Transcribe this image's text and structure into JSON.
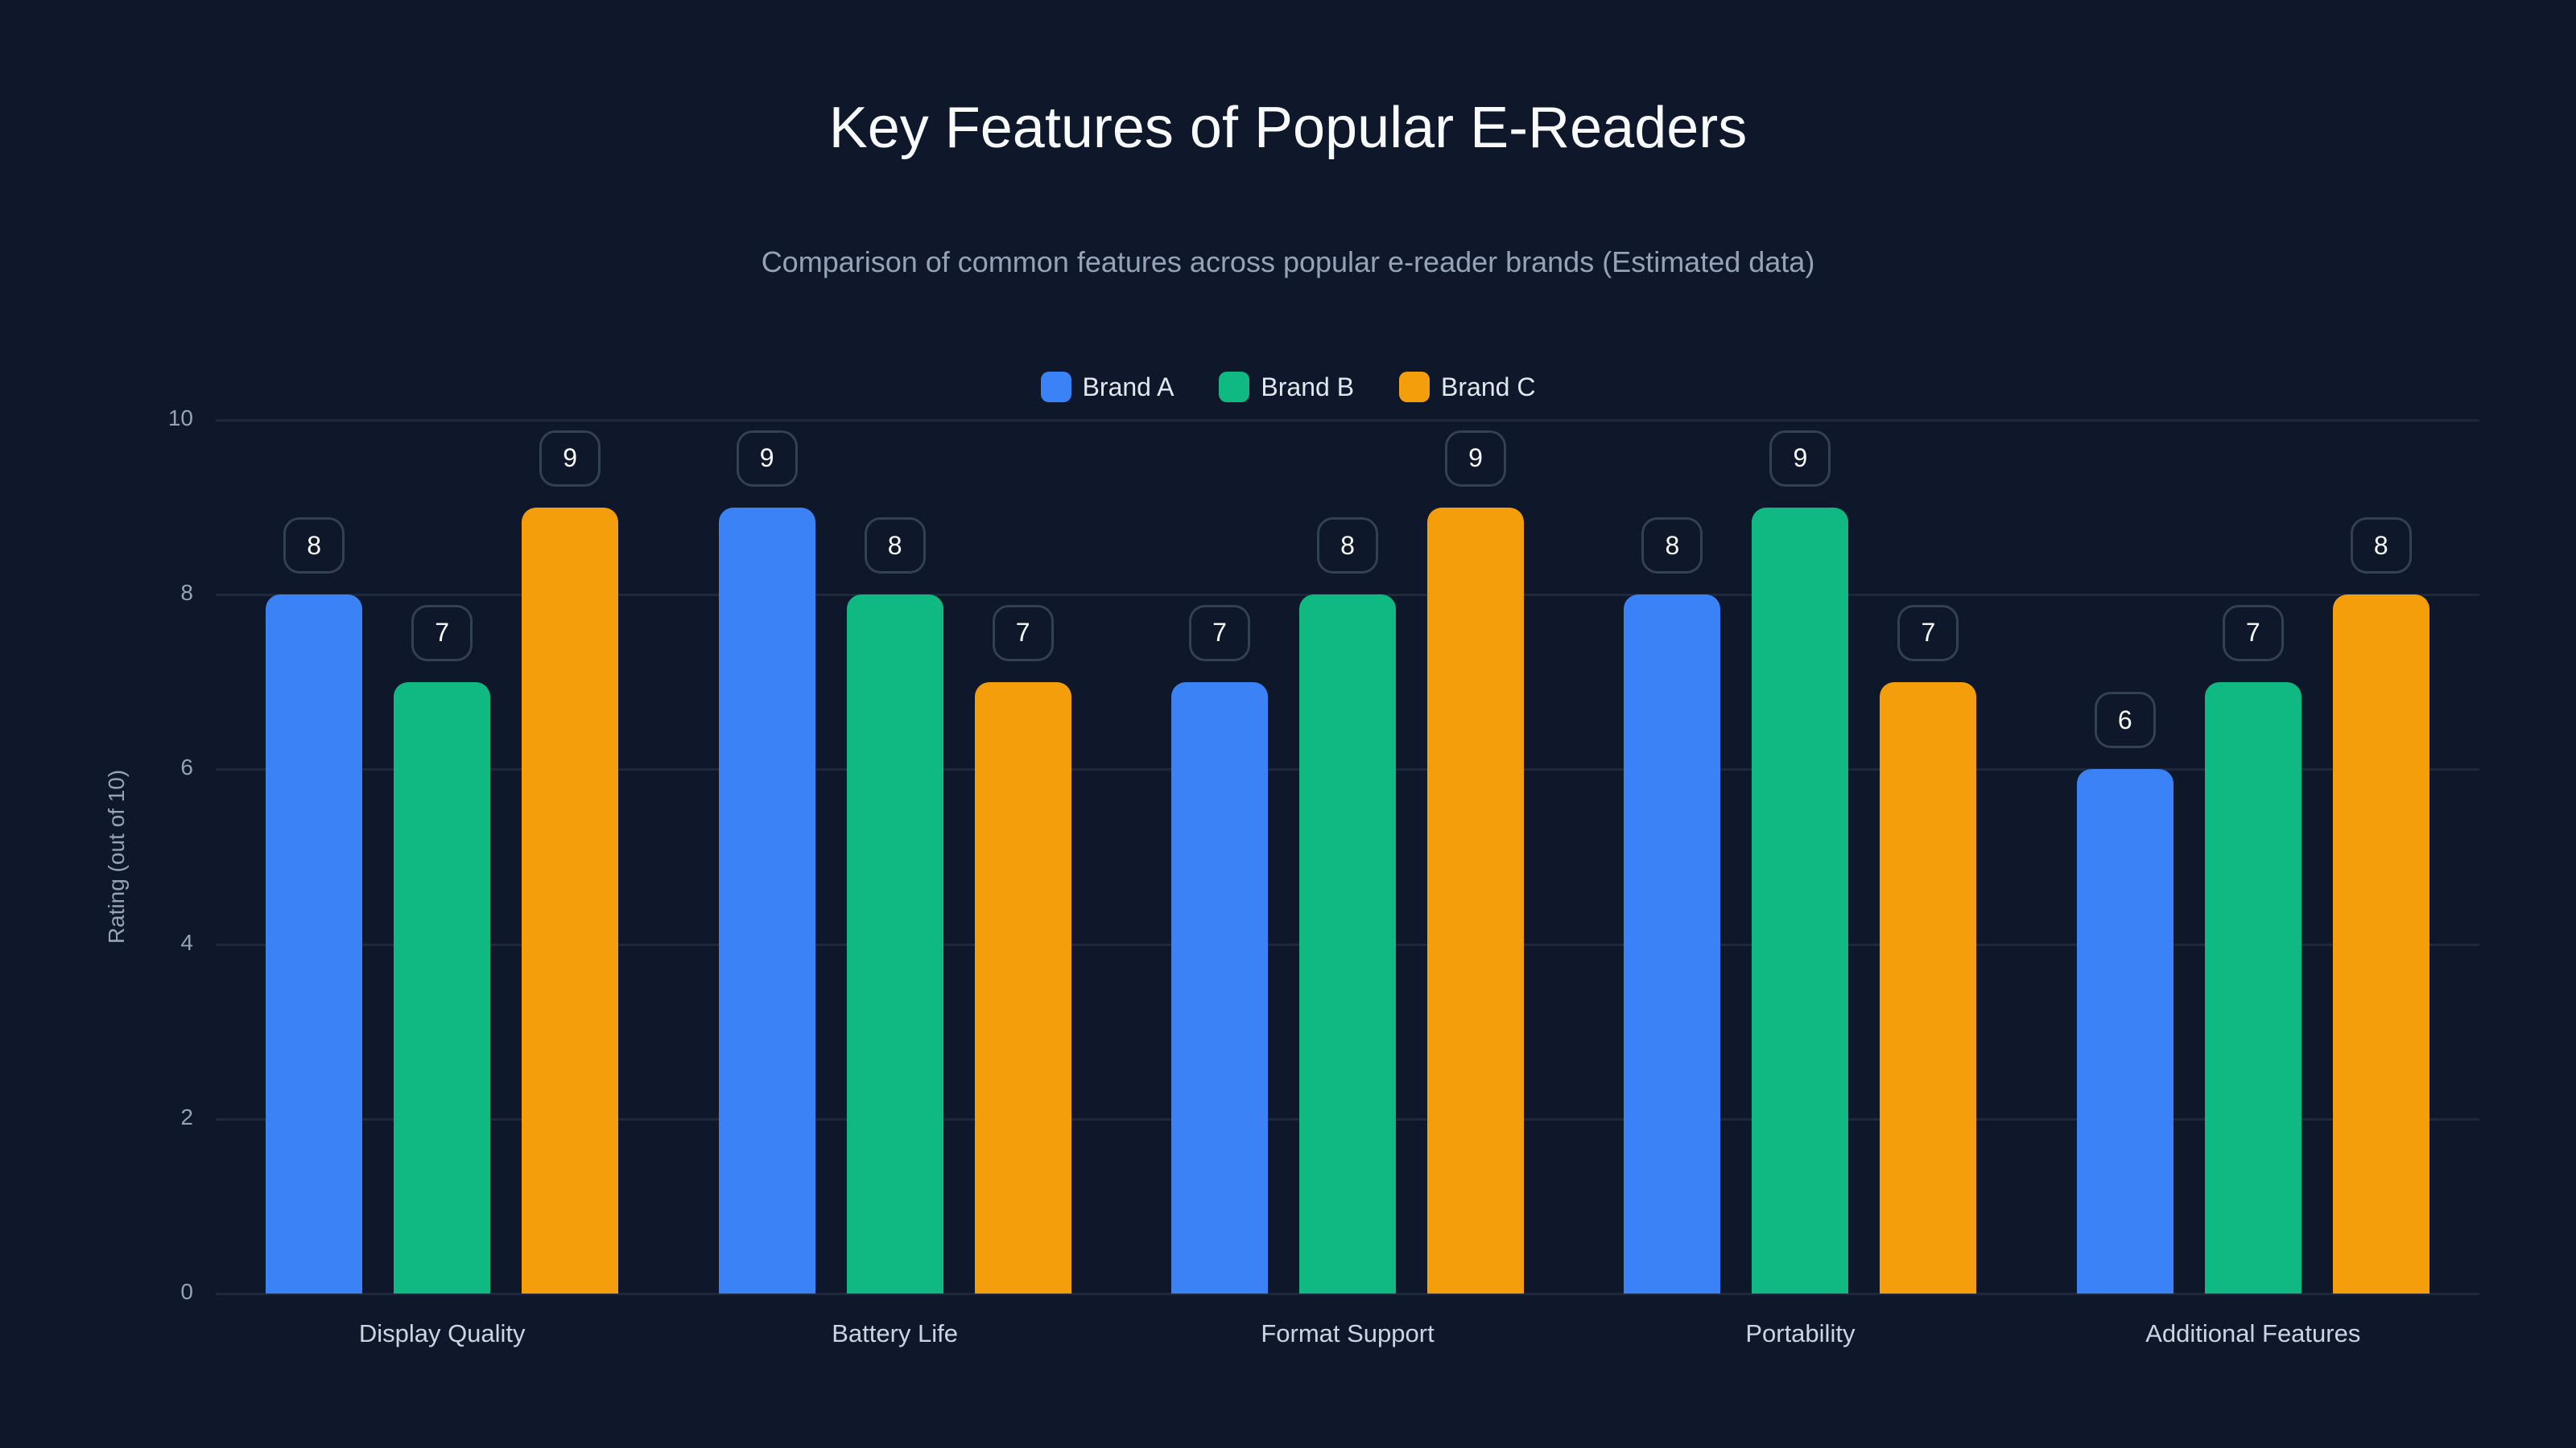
{
  "title": "Key Features of Popular E-Readers",
  "subtitle": "Comparison of common features across popular e-reader brands (Estimated data)",
  "legend": [
    {
      "label": "Brand A",
      "color": "#3b82f6"
    },
    {
      "label": "Brand B",
      "color": "#10b981"
    },
    {
      "label": "Brand C",
      "color": "#f59e0b"
    }
  ],
  "y_axis": {
    "label": "Rating (out of 10)",
    "ticks": [
      "0",
      "2",
      "4",
      "6",
      "8",
      "10"
    ]
  },
  "chart_data": {
    "type": "bar",
    "title": "Key Features of Popular E-Readers",
    "subtitle": "Comparison of common features across popular e-reader brands (Estimated data)",
    "xlabel": "",
    "ylabel": "Rating (out of 10)",
    "ylim": [
      0,
      10
    ],
    "yticks": [
      0,
      2,
      4,
      6,
      8,
      10
    ],
    "grid": true,
    "legend_position": "top",
    "categories": [
      "Display Quality",
      "Battery Life",
      "Format Support",
      "Portability",
      "Additional Features"
    ],
    "series": [
      {
        "name": "Brand A",
        "color": "#3b82f6",
        "values": [
          8,
          9,
          7,
          8,
          6
        ]
      },
      {
        "name": "Brand B",
        "color": "#10b981",
        "values": [
          7,
          8,
          8,
          9,
          7
        ]
      },
      {
        "name": "Brand C",
        "color": "#f59e0b",
        "values": [
          9,
          7,
          9,
          7,
          8
        ]
      }
    ]
  }
}
